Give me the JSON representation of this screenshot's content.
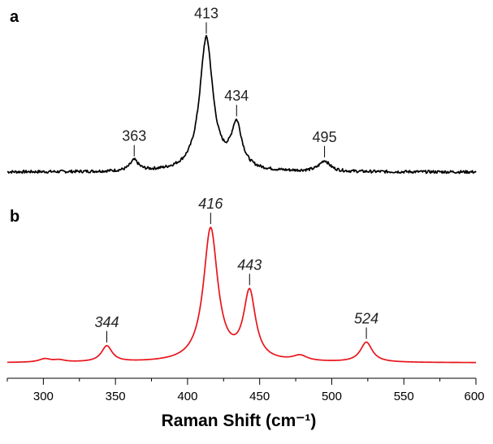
{
  "chart_data": {
    "type": "line",
    "xlabel": "Raman Shift (cm⁻¹)",
    "xlim": [
      275,
      600
    ],
    "x_ticks": [
      300,
      350,
      400,
      450,
      500,
      550,
      600
    ],
    "grid": false,
    "panels": [
      {
        "label": "a",
        "color": "#000000",
        "italic_peak_labels": false,
        "baseline": 0.0,
        "noise": true,
        "peaks": [
          {
            "x": 363,
            "y": 0.08,
            "width": 3.5,
            "label": "363"
          },
          {
            "x": 413,
            "y": 1.0,
            "width": 5.5,
            "label": "413"
          },
          {
            "x": 434,
            "y": 0.33,
            "width": 4.5,
            "label": "434"
          },
          {
            "x": 495,
            "y": 0.08,
            "width": 4.5,
            "label": "495"
          }
        ]
      },
      {
        "label": "b",
        "color": "#e8141b",
        "italic_peak_labels": true,
        "baseline": 0.0,
        "noise": false,
        "peaks": [
          {
            "x": 301,
            "y": 0.025,
            "width": 5,
            "label": ""
          },
          {
            "x": 311,
            "y": 0.015,
            "width": 5,
            "label": ""
          },
          {
            "x": 344,
            "y": 0.12,
            "width": 4.5,
            "label": "344"
          },
          {
            "x": 416,
            "y": 1.0,
            "width": 6,
            "label": "416"
          },
          {
            "x": 443,
            "y": 0.51,
            "width": 5,
            "label": "443"
          },
          {
            "x": 478,
            "y": 0.04,
            "width": 6,
            "label": ""
          },
          {
            "x": 524,
            "y": 0.15,
            "width": 5,
            "label": "524"
          }
        ]
      }
    ]
  }
}
